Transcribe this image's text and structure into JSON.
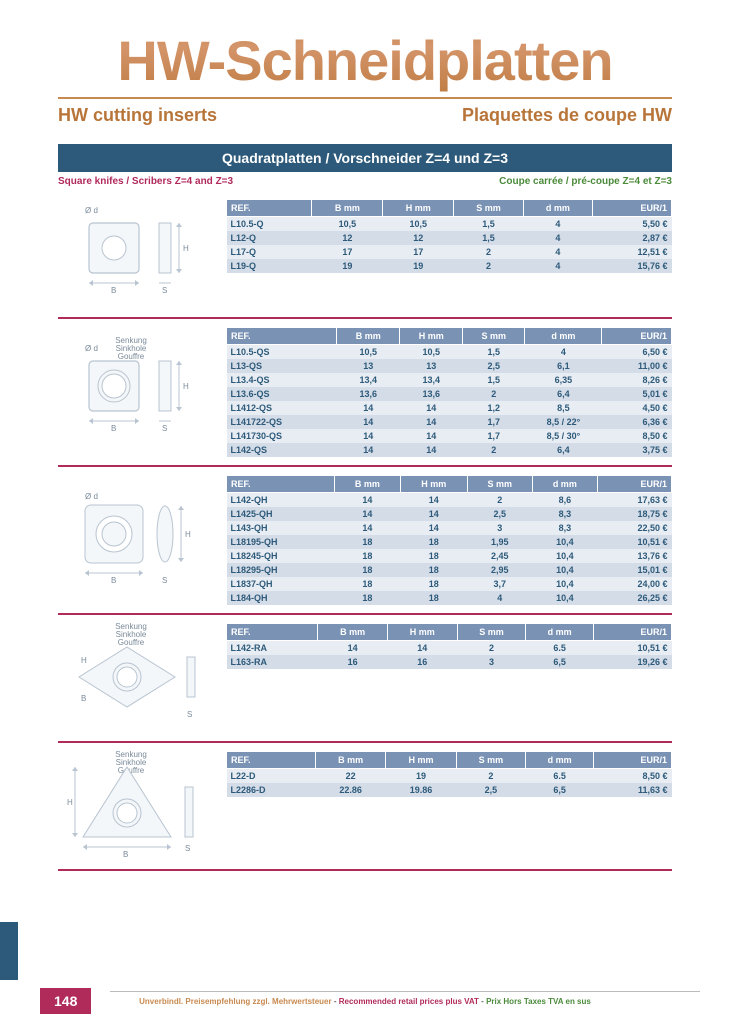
{
  "main_title": "HW-Schneidplatten",
  "subtitle_left": "HW cutting inserts",
  "subtitle_right": "Plaquettes de coupe HW",
  "blue_band": "Quadratplatten / Vorschneider Z=4 und Z=3",
  "lang_left": "Square knifes / Scribers Z=4 and Z=3",
  "lang_right": "Coupe carrée / pré-coupe Z=4 et Z=3",
  "columns": [
    "REF.",
    "B mm",
    "H mm",
    "S mm",
    "d mm",
    "EUR/1"
  ],
  "diagram_labels": {
    "senkung": "Senkung",
    "sinkhole": "Sinkhole",
    "gouffre": "Gouffre",
    "od": "Ø d",
    "B": "B",
    "H": "H",
    "S": "S"
  },
  "sections": [
    {
      "diagram": "square_flat",
      "senkung": false,
      "rows": [
        [
          "L10.5-Q",
          "10,5",
          "10,5",
          "1,5",
          "4",
          "5,50 €"
        ],
        [
          "L12-Q",
          "12",
          "12",
          "1,5",
          "4",
          "2,87 €"
        ],
        [
          "L17-Q",
          "17",
          "17",
          "2",
          "4",
          "12,51 €"
        ],
        [
          "L19-Q",
          "19",
          "19",
          "2",
          "4",
          "15,76 €"
        ]
      ]
    },
    {
      "diagram": "square_csk",
      "senkung": true,
      "rows": [
        [
          "L10.5-QS",
          "10,5",
          "10,5",
          "1,5",
          "4",
          "6,50 €"
        ],
        [
          "L13-QS",
          "13",
          "13",
          "2,5",
          "6,1",
          "11,00 €"
        ],
        [
          "L13.4-QS",
          "13,4",
          "13,4",
          "1,5",
          "6,35",
          "8,26 €"
        ],
        [
          "L13.6-QS",
          "13,6",
          "13,6",
          "2",
          "6,4",
          "5,01 €"
        ],
        [
          "L1412-QS",
          "14",
          "14",
          "1,2",
          "8,5",
          "4,50 €"
        ],
        [
          "L141722-QS",
          "14",
          "14",
          "1,7",
          "8,5 / 22°",
          "6,36 €"
        ],
        [
          "L141730-QS",
          "14",
          "14",
          "1,7",
          "8,5 / 30°",
          "8,50 €"
        ],
        [
          "L142-QS",
          "14",
          "14",
          "2",
          "6,4",
          "3,75 €"
        ]
      ]
    },
    {
      "diagram": "square_bossed",
      "senkung": false,
      "rows": [
        [
          "L142-QH",
          "14",
          "14",
          "2",
          "8,6",
          "17,63 €"
        ],
        [
          "L1425-QH",
          "14",
          "14",
          "2,5",
          "8,3",
          "18,75 €"
        ],
        [
          "L143-QH",
          "14",
          "14",
          "3",
          "8,3",
          "22,50 €"
        ],
        [
          "L18195-QH",
          "18",
          "18",
          "1,95",
          "10,4",
          "10,51 €"
        ],
        [
          "L18245-QH",
          "18",
          "18",
          "2,45",
          "10,4",
          "13,76 €"
        ],
        [
          "L18295-QH",
          "18",
          "18",
          "2,95",
          "10,4",
          "15,01 €"
        ],
        [
          "L1837-QH",
          "18",
          "18",
          "3,7",
          "10,4",
          "24,00 €"
        ],
        [
          "L184-QH",
          "18",
          "18",
          "4",
          "10,4",
          "26,25 €"
        ]
      ]
    },
    {
      "diagram": "diamond",
      "senkung": true,
      "rows": [
        [
          "L142-RA",
          "14",
          "14",
          "2",
          "6.5",
          "10,51 €"
        ],
        [
          "L163-RA",
          "16",
          "16",
          "3",
          "6,5",
          "19,26 €"
        ]
      ]
    },
    {
      "diagram": "triangle",
      "senkung": true,
      "rows": [
        [
          "L22-D",
          "22",
          "19",
          "2",
          "6.5",
          "8,50 €"
        ],
        [
          "L2286-D",
          "22.86",
          "19.86",
          "2,5",
          "6,5",
          "11,63 €"
        ]
      ]
    }
  ],
  "footer": {
    "page": "148",
    "de": "Unverbindl. Preisempfehlung zzgl. Mehrwertsteuer",
    "en": "Recommended retail prices plus VAT",
    "fr": "Prix Hors Taxes TVA en sus"
  },
  "colors": {
    "accent_orange": "#c88a50",
    "accent_blue": "#2d5a7a",
    "accent_red": "#b02a5a",
    "accent_green": "#4a8a3a",
    "th_bg": "#7a93b5",
    "row_odd": "#e8edf3",
    "row_even": "#d4dce8"
  }
}
